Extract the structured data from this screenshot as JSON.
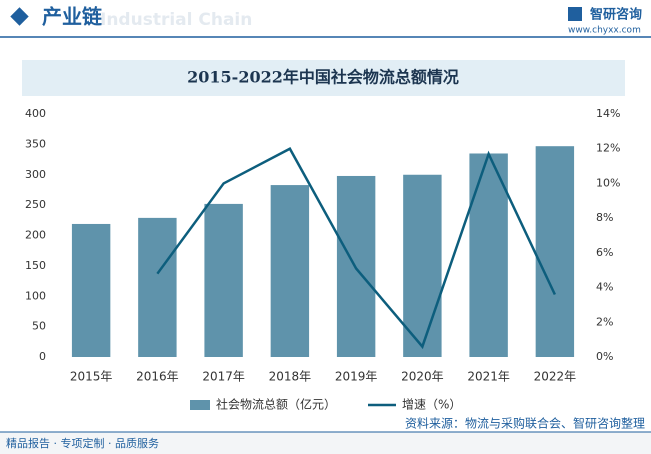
{
  "header": {
    "title": "产业链",
    "watermark": "Industrial Chain",
    "brand": "智研咨询",
    "url": "www.chyxx.com"
  },
  "chart_data": {
    "type": "bar",
    "title": "2015-2022年中国社会物流总额情况",
    "categories": [
      "2015年",
      "2016年",
      "2017年",
      "2018年",
      "2019年",
      "2020年",
      "2021年",
      "2022年"
    ],
    "series": [
      {
        "name": "社会物流总额（亿元）",
        "type": "bar",
        "color": "#5f93ab",
        "values": [
          219,
          229,
          252,
          283,
          298,
          300,
          335,
          347
        ]
      },
      {
        "name": "增速（%）",
        "type": "line",
        "axis": "y2",
        "color": "#0d5e7d",
        "values": [
          null,
          4.8,
          10.0,
          12.0,
          5.1,
          0.6,
          11.7,
          3.6
        ]
      }
    ],
    "ylim": [
      0,
      400
    ],
    "yticks": [
      0,
      50,
      100,
      150,
      200,
      250,
      300,
      350,
      400
    ],
    "y2lim": [
      0,
      14
    ],
    "y2ticks": [
      {
        "value": 0,
        "label": "0%"
      },
      {
        "value": 2,
        "label": "2%"
      },
      {
        "value": 4,
        "label": "4%"
      },
      {
        "value": 6,
        "label": "6%"
      },
      {
        "value": 8,
        "label": "8%"
      },
      {
        "value": 10,
        "label": "10%"
      },
      {
        "value": 12,
        "label": "12%"
      },
      {
        "value": 14,
        "label": "14%"
      }
    ],
    "grid": false,
    "legend": "bottom"
  },
  "footer": {
    "left": "精品报告 · 专项定制 · 品质服务",
    "source": "资料来源：物流与采购联合会、智研咨询整理"
  }
}
